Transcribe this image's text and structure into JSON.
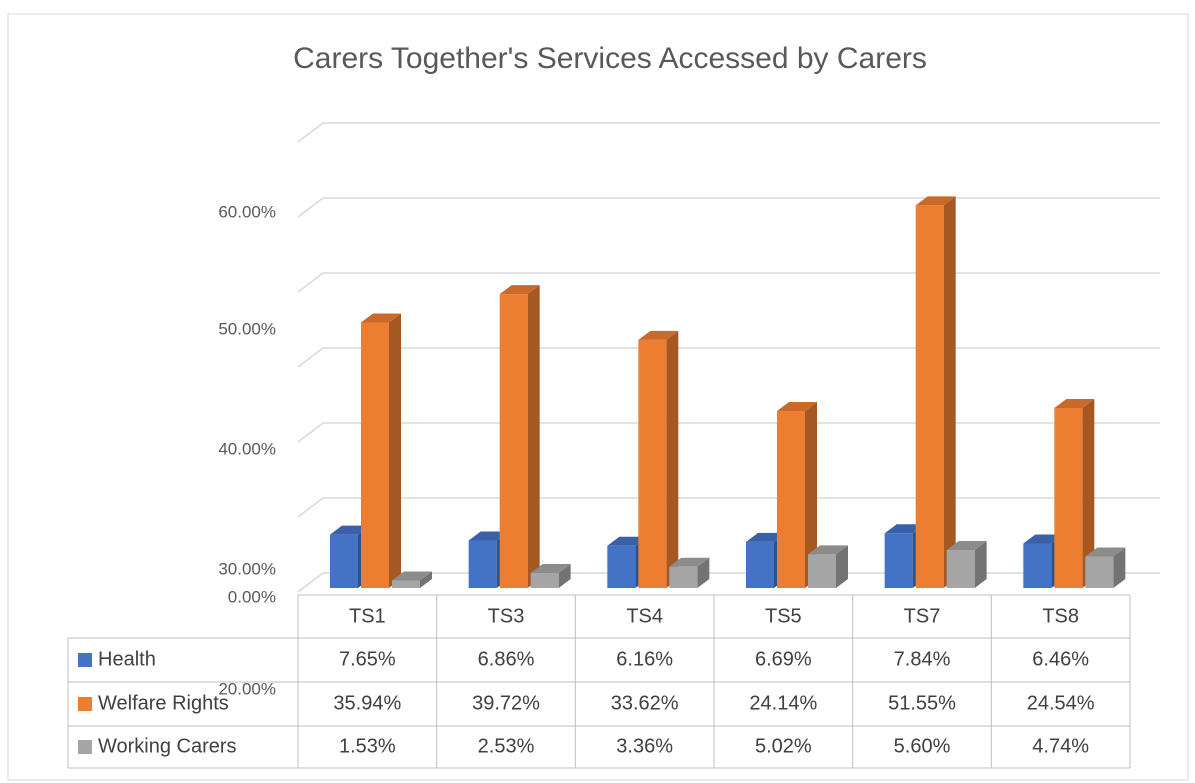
{
  "chart_data": {
    "type": "bar3d",
    "title": "Carers Together's Services Accessed by Carers",
    "categories": [
      "TS1",
      "TS3",
      "TS4",
      "TS5",
      "TS7",
      "TS8"
    ],
    "series": [
      {
        "name": "Health",
        "color": "#4472c4",
        "values": [
          7.65,
          6.86,
          6.16,
          6.69,
          7.84,
          6.46
        ],
        "value_labels": [
          "7.65%",
          "6.86%",
          "6.16%",
          "6.69%",
          "7.84%",
          "6.46%"
        ]
      },
      {
        "name": "Welfare Rights",
        "color": "#ed7d31",
        "values": [
          35.94,
          39.72,
          33.62,
          24.14,
          51.55,
          24.54
        ],
        "value_labels": [
          "35.94%",
          "39.72%",
          "33.62%",
          "24.14%",
          "51.55%",
          "24.54%"
        ]
      },
      {
        "name": "Working Carers",
        "color": "#a5a5a5",
        "values": [
          1.53,
          2.53,
          3.36,
          5.02,
          5.6,
          4.74
        ],
        "value_labels": [
          "1.53%",
          "2.53%",
          "3.36%",
          "5.02%",
          "5.60%",
          "4.74%"
        ]
      }
    ],
    "ylim": [
      0,
      60
    ],
    "yticks": [
      {
        "value": 0,
        "label": "0.00%"
      },
      10,
      {
        "value": 20,
        "label": "20.00%"
      },
      {
        "value": 30,
        "label": "30.00%"
      },
      {
        "value": 40,
        "label": "40.00%"
      },
      {
        "value": 50,
        "label": "50.00%"
      },
      {
        "value": 60,
        "label": "60.00%"
      }
    ],
    "grid": true
  }
}
